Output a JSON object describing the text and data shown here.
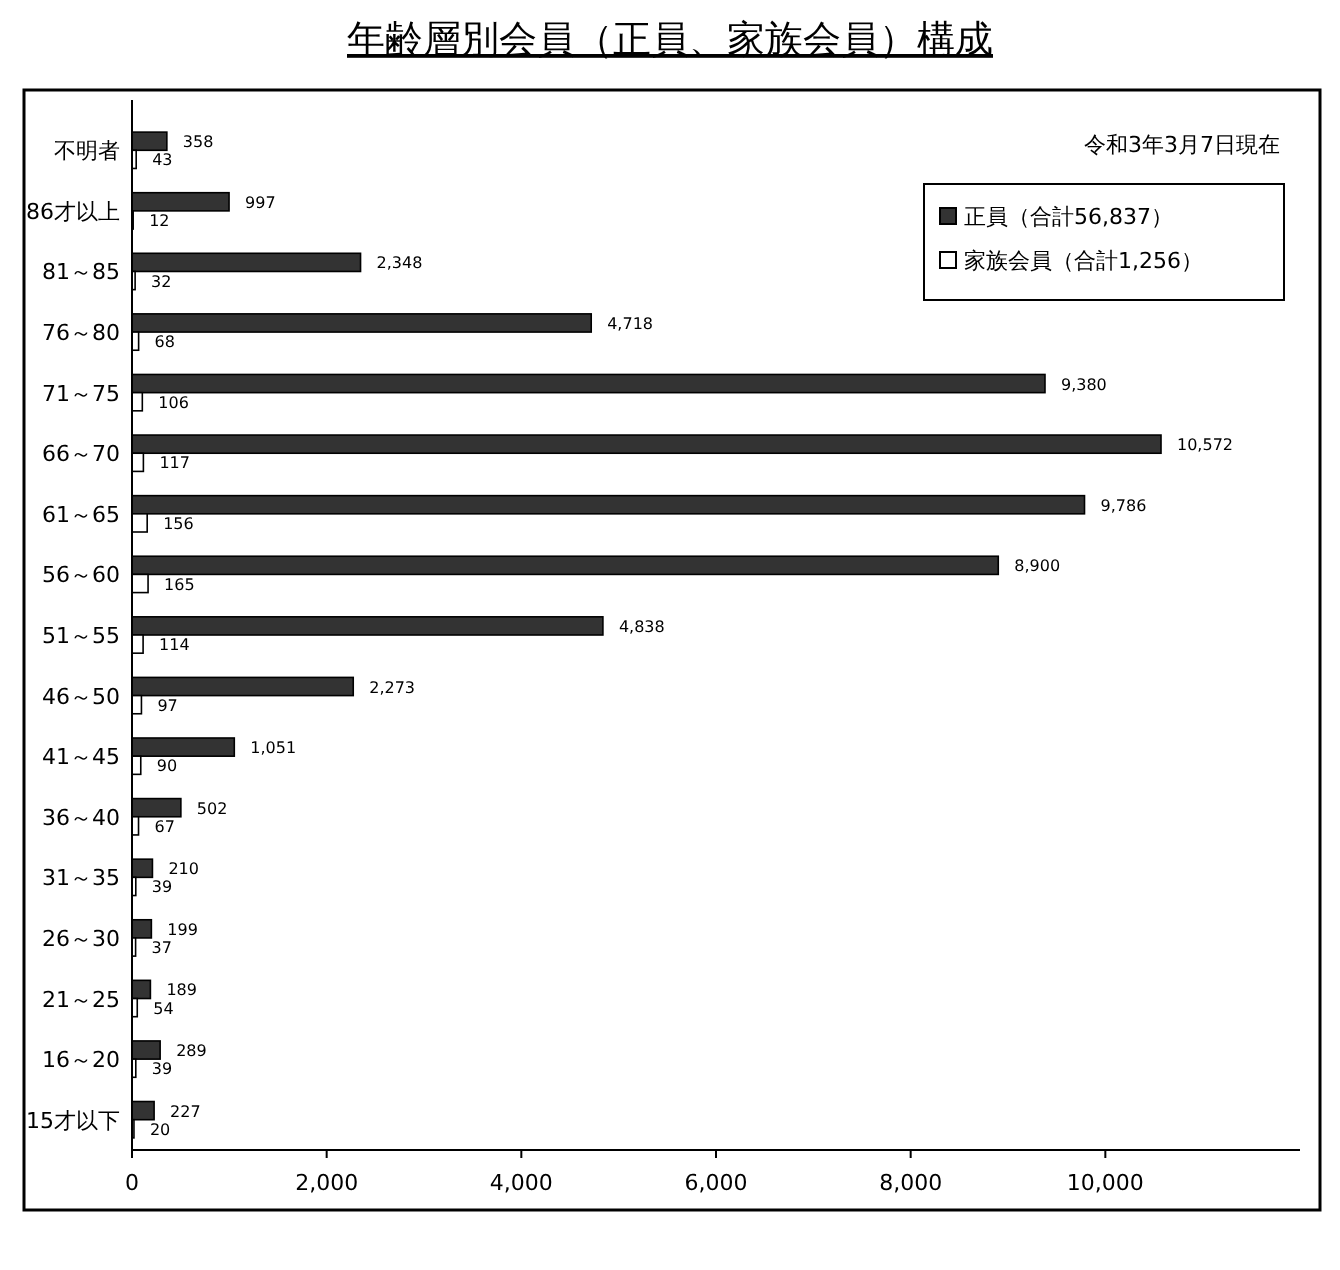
{
  "chart_data": {
    "type": "bar",
    "orientation": "horizontal",
    "title": "年齢層別会員（正員、家族会員）構成",
    "categories": [
      "不明者",
      "86才以上",
      "81～85",
      "76～80",
      "71～75",
      "66～70",
      "61～65",
      "56～60",
      "51～55",
      "46～50",
      "41～45",
      "36～40",
      "31～35",
      "26～30",
      "21～25",
      "16～20",
      "15才以下"
    ],
    "series": [
      {
        "name": "正員（合計56,837）",
        "color": "#333333",
        "values": [
          358,
          997,
          2348,
          4718,
          9380,
          10572,
          9786,
          8900,
          4838,
          2273,
          1051,
          502,
          210,
          199,
          189,
          289,
          227
        ],
        "value_labels": [
          "358",
          "997",
          "2,348",
          "4,718",
          "9,380",
          "10,572",
          "9,786",
          "8,900",
          "4,838",
          "2,273",
          "1,051",
          "502",
          "210",
          "199",
          "189",
          "289",
          "227"
        ]
      },
      {
        "name": "家族会員（合計1,256）",
        "color": "#ffffff",
        "values": [
          43,
          12,
          32,
          68,
          106,
          117,
          156,
          165,
          114,
          97,
          90,
          67,
          39,
          37,
          54,
          39,
          20
        ],
        "value_labels": [
          "43",
          "12",
          "32",
          "68",
          "106",
          "117",
          "156",
          "165",
          "114",
          "97",
          "90",
          "67",
          "39",
          "37",
          "54",
          "39",
          "20"
        ]
      }
    ],
    "xlim": [
      0,
      12000
    ],
    "xticks": [
      0,
      {
        "value": 2000,
        "label": "2,000"
      },
      {
        "value": 4000,
        "label": "4,000"
      },
      {
        "value": 6000,
        "label": "6,000"
      },
      {
        "value": 8000,
        "label": "8,000"
      },
      {
        "value": 10000,
        "label": "10,000"
      }
    ],
    "legend": "top right",
    "grid": false,
    "annotations": [
      "令和3年3月7日現在"
    ]
  }
}
